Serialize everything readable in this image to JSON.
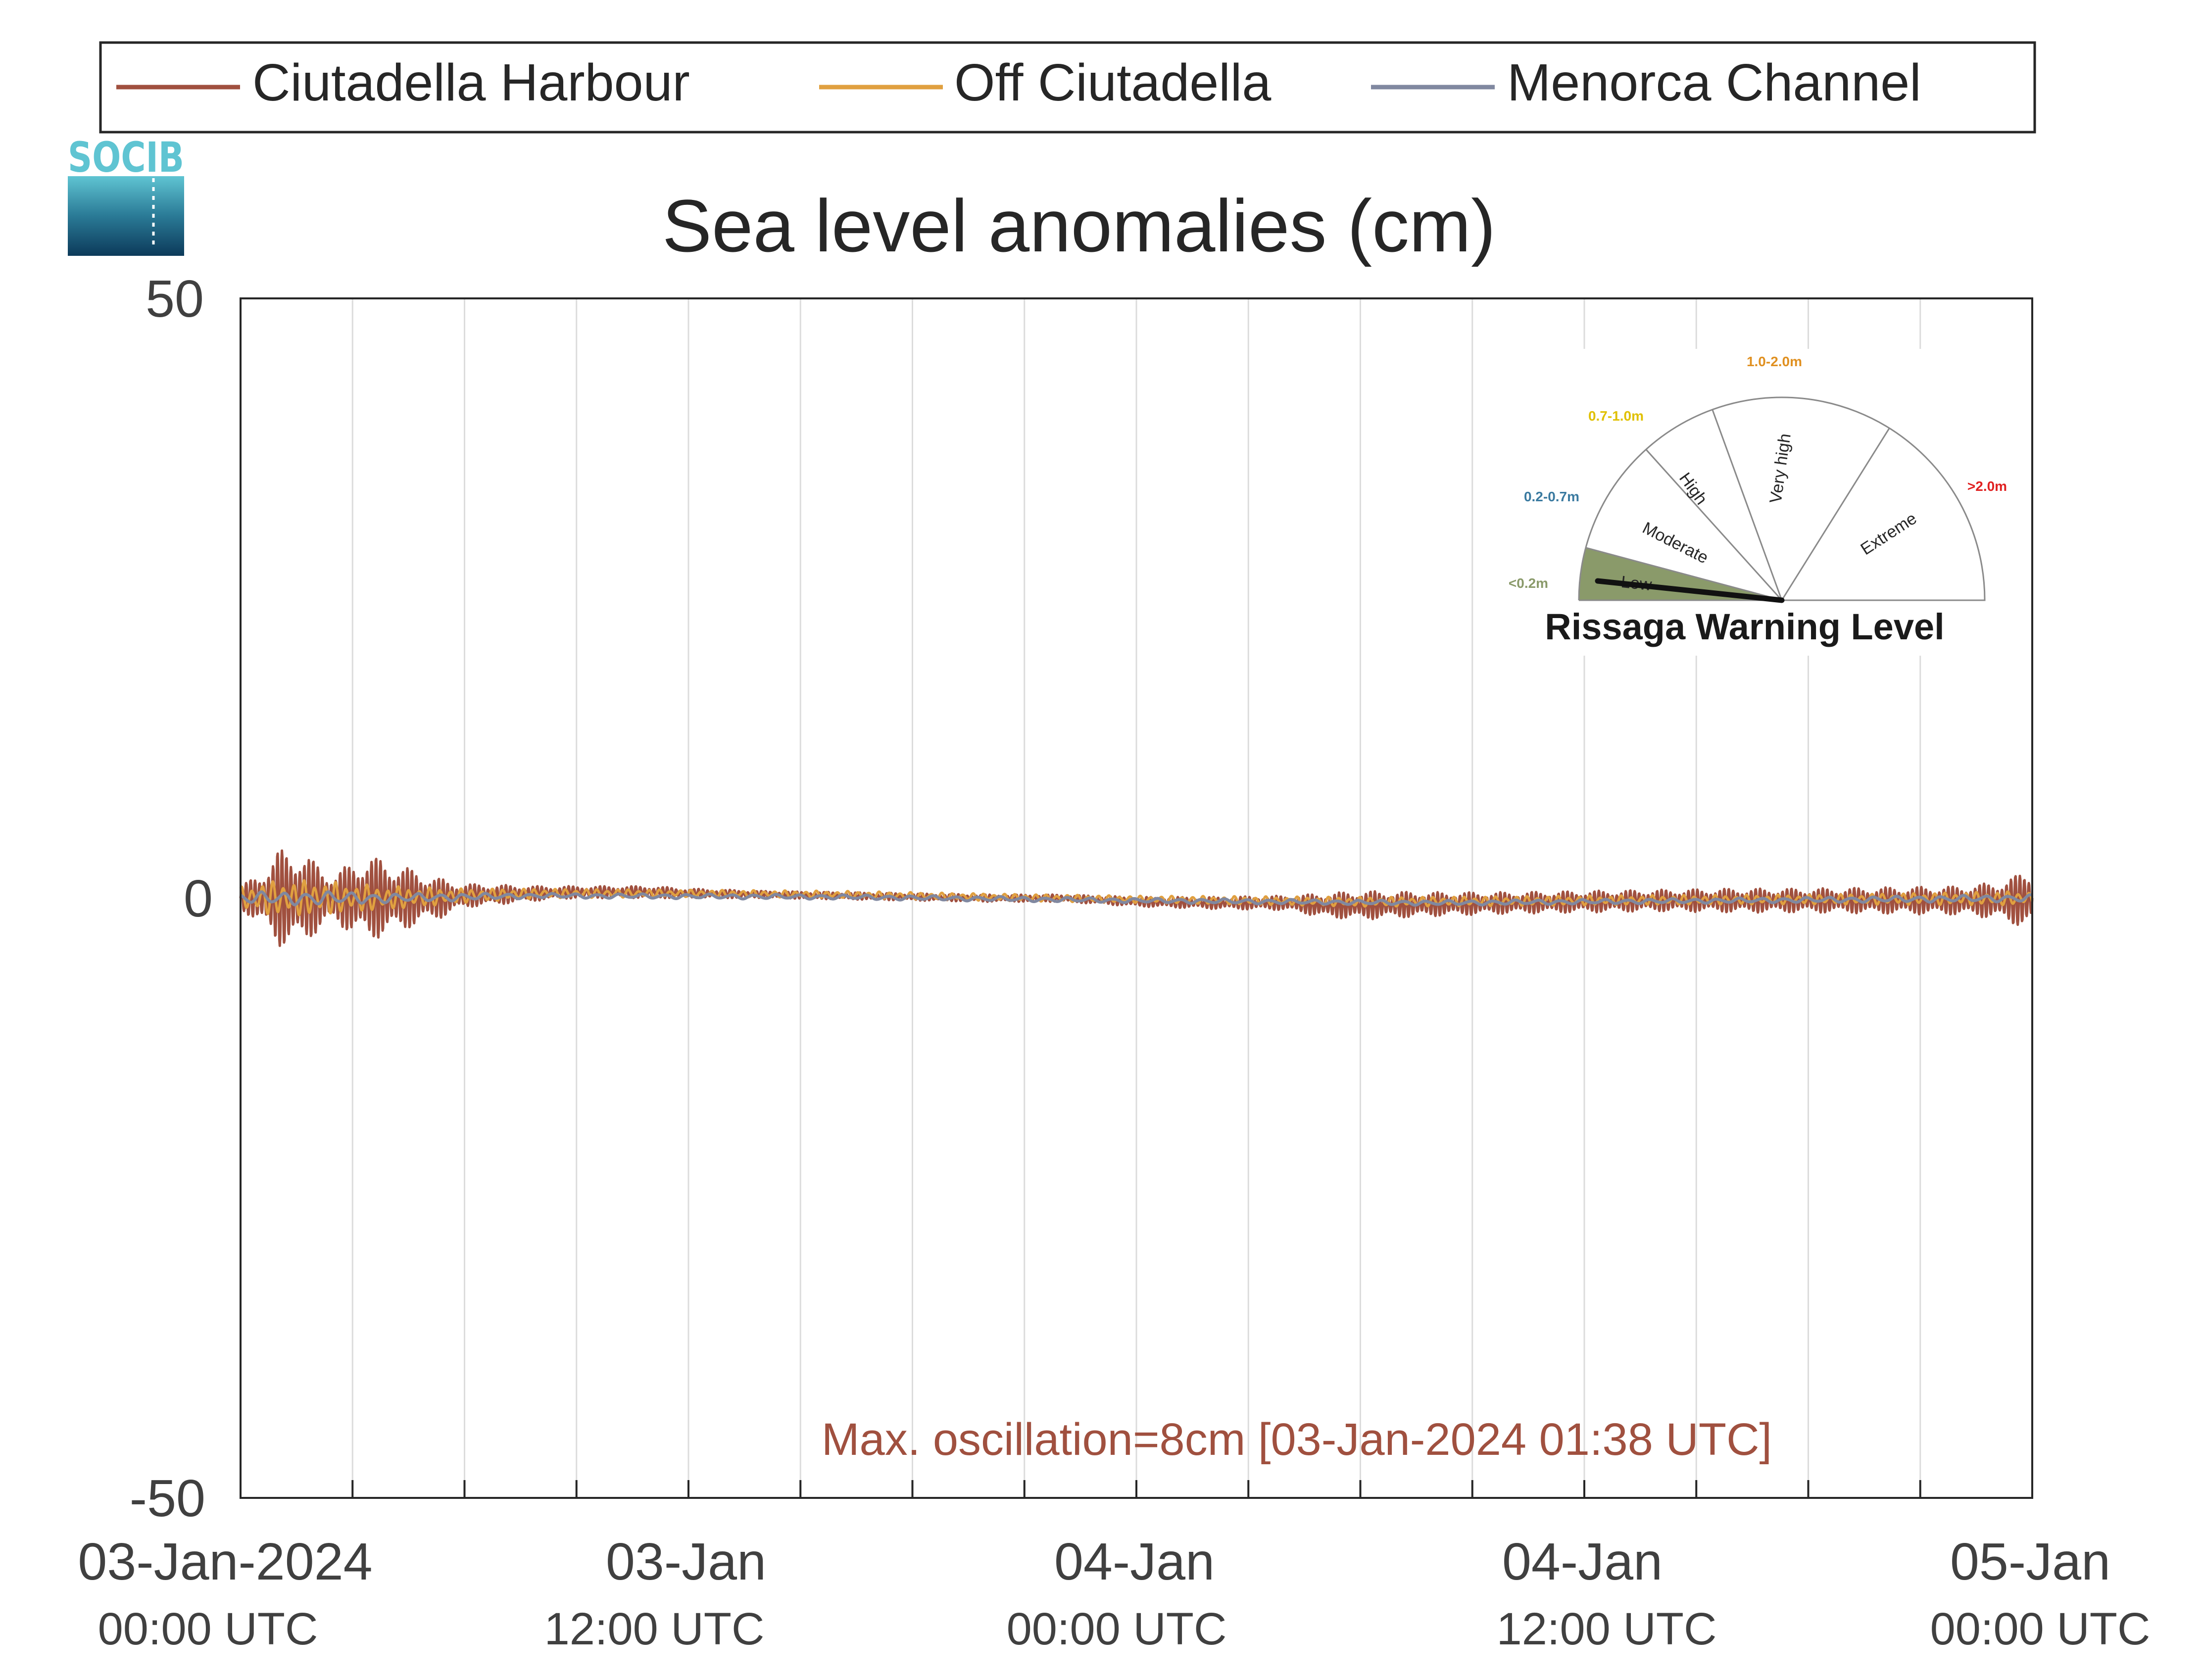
{
  "logo": {
    "text": "SOCIB"
  },
  "colors": {
    "ciutadella_harbour": "#a0503f",
    "off_ciutadella": "#e0a040",
    "menorca_channel": "#8088a0",
    "annotation": "#a0503f",
    "warning_low": "#8a9a6a",
    "label_low": "#8a9a6a",
    "label_moderate": "#3a7aa0",
    "label_high": "#e0c000",
    "label_very_high": "#e09020",
    "label_extreme": "#e02020"
  },
  "chart_data": {
    "type": "line",
    "title": "Sea level anomalies (cm)",
    "xlabel": "",
    "ylabel": "",
    "ylim": [
      -50,
      50
    ],
    "yticks": [
      "-50",
      "0",
      "50"
    ],
    "xlim": [
      "2024-01-03 00:00",
      "2024-01-05 00:00"
    ],
    "grid": true,
    "legend_position": "top",
    "xticks": [
      {
        "date": "03-Jan-2024",
        "time": "00:00 UTC"
      },
      {
        "date": "03-Jan",
        "time": "12:00 UTC"
      },
      {
        "date": "04-Jan",
        "time": "00:00 UTC"
      },
      {
        "date": "04-Jan",
        "time": "12:00 UTC"
      },
      {
        "date": "05-Jan",
        "time": "00:00 UTC"
      }
    ],
    "series": [
      {
        "name": "Ciutadella Harbour",
        "envelope_t_hours": [
          0,
          0.5,
          1,
          1.6,
          2,
          2.5,
          3,
          3.5,
          4,
          4.5,
          5,
          5.5,
          6,
          7,
          8,
          9,
          10,
          11,
          12,
          14,
          16,
          18,
          20,
          22,
          24,
          26,
          28,
          29,
          30,
          32,
          34,
          36,
          38,
          40,
          42,
          44,
          46,
          47,
          47.5,
          48
        ],
        "envelope_cm": [
          1,
          2,
          4,
          4,
          3,
          2,
          3,
          3.5,
          3,
          2.5,
          2,
          1.5,
          1,
          0.8,
          0.6,
          0.5,
          0.5,
          0.5,
          0.4,
          0.3,
          0.3,
          0.3,
          0.3,
          0.3,
          0.4,
          0.5,
          0.6,
          1,
          1.2,
          1,
          0.9,
          0.9,
          0.9,
          1,
          1,
          1.1,
          1.2,
          1.5,
          2,
          2.5
        ],
        "mean_cm": [
          0,
          0,
          0,
          0,
          0,
          0,
          0,
          0,
          0,
          0,
          0,
          0,
          0.2,
          0.3,
          0.4,
          0.5,
          0.5,
          0.5,
          0.4,
          0.3,
          0.2,
          0.1,
          0,
          0,
          -0.3,
          -0.4,
          -0.4,
          -0.6,
          -0.6,
          -0.5,
          -0.4,
          -0.3,
          -0.2,
          -0.2,
          -0.2,
          -0.2,
          -0.2,
          -0.2,
          -0.2,
          0
        ]
      },
      {
        "name": "Off Ciutadella",
        "envelope_t_hours": [
          0,
          1,
          2,
          3,
          4,
          6,
          8,
          12,
          16,
          24,
          30,
          36,
          42,
          48
        ],
        "envelope_cm": [
          1,
          1.5,
          1.5,
          1.2,
          1,
          0.6,
          0.4,
          0.3,
          0.3,
          0.3,
          0.4,
          0.4,
          0.4,
          0.6
        ],
        "mean_cm": [
          0,
          0,
          0,
          0,
          0,
          0.2,
          0.4,
          0.4,
          0.3,
          -0.1,
          -0.3,
          -0.2,
          -0.1,
          0
        ]
      },
      {
        "name": "Menorca Channel",
        "envelope_t_hours": [
          0,
          2,
          4,
          8,
          16,
          24,
          32,
          40,
          48
        ],
        "envelope_cm": [
          0.5,
          0.6,
          0.4,
          0.2,
          0.2,
          0.2,
          0.2,
          0.2,
          0.3
        ],
        "mean_cm": [
          0,
          0,
          0,
          0.2,
          0.1,
          -0.2,
          -0.4,
          -0.2,
          0
        ]
      }
    ],
    "annotation": "Max. oscillation=8cm [03-Jan-2024 01:38 UTC]"
  },
  "warning_gauge": {
    "title": "Rissaga Warning Level",
    "current_level": "Low",
    "levels": [
      {
        "name": "Low",
        "range": "<0.2m"
      },
      {
        "name": "Moderate",
        "range": "0.2-0.7m"
      },
      {
        "name": "High",
        "range": "0.7-1.0m"
      },
      {
        "name": "Very high",
        "range": "1.0-2.0m"
      },
      {
        "name": "Extreme",
        "range": ">2.0m"
      }
    ]
  }
}
